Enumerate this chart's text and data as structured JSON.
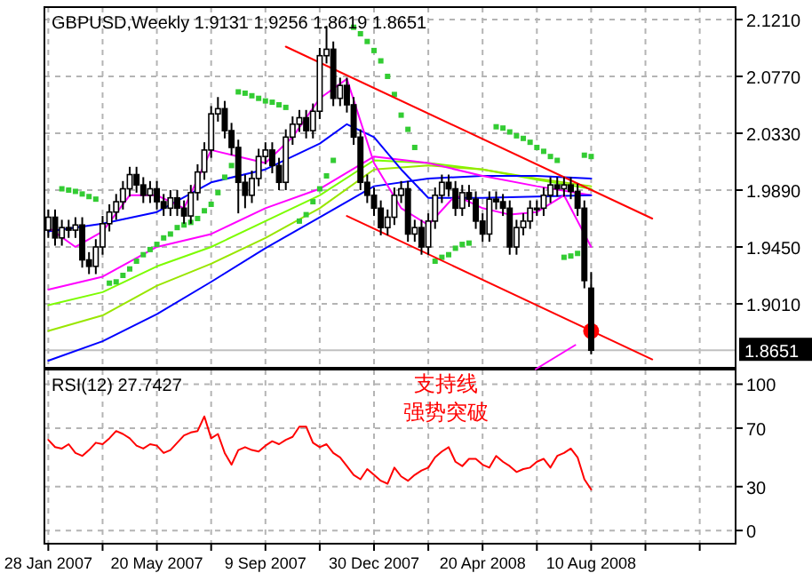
{
  "chart_data": [
    {
      "type": "candlestick",
      "title": "GBPUSD,Weekly  1.9131 1.9256 1.8619 1.8651",
      "x": [
        "2007-01-28",
        "2007-02-04",
        "2007-02-11",
        "2007-02-18",
        "2007-02-25",
        "2007-03-04",
        "2007-03-11",
        "2007-03-18",
        "2007-03-25",
        "2007-04-01",
        "2007-04-08",
        "2007-04-15",
        "2007-04-22",
        "2007-04-29",
        "2007-05-06",
        "2007-05-13",
        "2007-05-20",
        "2007-05-27",
        "2007-06-03",
        "2007-06-10",
        "2007-06-17",
        "2007-06-24",
        "2007-07-01",
        "2007-07-08",
        "2007-07-15",
        "2007-07-22",
        "2007-07-29",
        "2007-08-05",
        "2007-08-12",
        "2007-08-19",
        "2007-08-26",
        "2007-09-02",
        "2007-09-09",
        "2007-09-16",
        "2007-09-23",
        "2007-09-30",
        "2007-10-07",
        "2007-10-14",
        "2007-10-21",
        "2007-10-28",
        "2007-11-04",
        "2007-11-11",
        "2007-11-18",
        "2007-11-25",
        "2007-12-02",
        "2007-12-09",
        "2007-12-16",
        "2007-12-23",
        "2007-12-30",
        "2008-01-06",
        "2008-01-13",
        "2008-01-20",
        "2008-01-27",
        "2008-02-03",
        "2008-02-10",
        "2008-02-17",
        "2008-02-24",
        "2008-03-02",
        "2008-03-09",
        "2008-03-16",
        "2008-03-23",
        "2008-03-30",
        "2008-04-06",
        "2008-04-13",
        "2008-04-20",
        "2008-04-27",
        "2008-05-04",
        "2008-05-11",
        "2008-05-18",
        "2008-05-25",
        "2008-06-01",
        "2008-06-08",
        "2008-06-15",
        "2008-06-22",
        "2008-06-29",
        "2008-07-06",
        "2008-07-13",
        "2008-07-20",
        "2008-07-27",
        "2008-08-03",
        "2008-08-10"
      ],
      "ohlc": [
        [
          1.958,
          1.974,
          1.952,
          1.968
        ],
        [
          1.968,
          1.974,
          1.946,
          1.952
        ],
        [
          1.952,
          1.966,
          1.946,
          1.96
        ],
        [
          1.96,
          1.966,
          1.952,
          1.958
        ],
        [
          1.958,
          1.968,
          1.952,
          1.962
        ],
        [
          1.962,
          1.968,
          1.929,
          1.935
        ],
        [
          1.935,
          1.941,
          1.924,
          1.93
        ],
        [
          1.93,
          1.951,
          1.924,
          1.945
        ],
        [
          1.945,
          1.969,
          1.939,
          1.963
        ],
        [
          1.963,
          1.978,
          1.957,
          1.972
        ],
        [
          1.972,
          1.986,
          1.966,
          1.98
        ],
        [
          1.98,
          1.996,
          1.974,
          1.99
        ],
        [
          1.99,
          2.007,
          1.984,
          2.001
        ],
        [
          2.001,
          2.007,
          1.987,
          1.993
        ],
        [
          1.993,
          1.999,
          1.979,
          1.985
        ],
        [
          1.985,
          1.996,
          1.979,
          1.99
        ],
        [
          1.99,
          1.996,
          1.974,
          1.98
        ],
        [
          1.98,
          1.986,
          1.969,
          1.975
        ],
        [
          1.975,
          1.989,
          1.969,
          1.983
        ],
        [
          1.983,
          1.989,
          1.969,
          1.975
        ],
        [
          1.975,
          1.981,
          1.963,
          1.969
        ],
        [
          1.969,
          1.993,
          1.963,
          1.987
        ],
        [
          1.987,
          2.009,
          1.981,
          2.003
        ],
        [
          2.003,
          2.026,
          1.997,
          2.02
        ],
        [
          2.02,
          2.054,
          2.014,
          2.048
        ],
        [
          2.048,
          2.061,
          2.042,
          2.052
        ],
        [
          2.052,
          2.058,
          2.029,
          2.035
        ],
        [
          2.035,
          2.041,
          2.016,
          2.022
        ],
        [
          2.022,
          2.028,
          1.971,
          1.995
        ],
        [
          1.995,
          2.001,
          1.975,
          1.985
        ],
        [
          1.985,
          2.004,
          1.979,
          1.998
        ],
        [
          1.998,
          2.021,
          1.992,
          2.015
        ],
        [
          2.015,
          2.026,
          2.009,
          2.02
        ],
        [
          2.02,
          2.026,
          2.002,
          2.008
        ],
        [
          2.008,
          2.014,
          1.989,
          1.995
        ],
        [
          1.995,
          2.036,
          1.989,
          2.03
        ],
        [
          2.03,
          2.046,
          2.024,
          2.04
        ],
        [
          2.04,
          2.051,
          2.034,
          2.045
        ],
        [
          2.045,
          2.051,
          2.029,
          2.035
        ],
        [
          2.035,
          2.056,
          2.029,
          2.05
        ],
        [
          2.05,
          2.099,
          2.044,
          2.093
        ],
        [
          2.093,
          2.116,
          2.087,
          2.098
        ],
        [
          2.098,
          2.104,
          2.054,
          2.06
        ],
        [
          2.06,
          2.076,
          2.054,
          2.07
        ],
        [
          2.07,
          2.076,
          2.049,
          2.055
        ],
        [
          2.055,
          2.061,
          2.024,
          2.03
        ],
        [
          2.03,
          2.036,
          1.989,
          1.995
        ],
        [
          1.995,
          2.001,
          1.979,
          1.985
        ],
        [
          1.985,
          1.991,
          1.969,
          1.975
        ],
        [
          1.975,
          1.981,
          1.954,
          1.96
        ],
        [
          1.96,
          1.974,
          1.954,
          1.968
        ],
        [
          1.968,
          1.991,
          1.962,
          1.985
        ],
        [
          1.985,
          1.996,
          1.979,
          1.99
        ],
        [
          1.99,
          1.996,
          1.949,
          1.955
        ],
        [
          1.955,
          1.966,
          1.949,
          1.96
        ],
        [
          1.96,
          1.966,
          1.939,
          1.945
        ],
        [
          1.945,
          1.971,
          1.939,
          1.965
        ],
        [
          1.965,
          1.991,
          1.959,
          1.985
        ],
        [
          1.985,
          2.001,
          1.979,
          1.995
        ],
        [
          1.995,
          2.001,
          1.984,
          1.99
        ],
        [
          1.99,
          1.996,
          1.969,
          1.975
        ],
        [
          1.975,
          1.993,
          1.969,
          1.987
        ],
        [
          1.987,
          1.993,
          1.976,
          1.982
        ],
        [
          1.982,
          1.988,
          1.959,
          1.965
        ],
        [
          1.965,
          1.971,
          1.949,
          1.955
        ],
        [
          1.955,
          1.988,
          1.949,
          1.982
        ],
        [
          1.982,
          1.988,
          1.974,
          1.98
        ],
        [
          1.98,
          1.986,
          1.969,
          1.975
        ],
        [
          1.975,
          1.981,
          1.939,
          1.945
        ],
        [
          1.945,
          1.966,
          1.939,
          1.96
        ],
        [
          1.96,
          1.971,
          1.954,
          1.965
        ],
        [
          1.965,
          1.981,
          1.959,
          1.975
        ],
        [
          1.975,
          1.981,
          1.969,
          1.975
        ],
        [
          1.975,
          1.991,
          1.969,
          1.985
        ],
        [
          1.985,
          1.999,
          1.979,
          1.993
        ],
        [
          1.993,
          1.999,
          1.984,
          1.99
        ],
        [
          1.99,
          1.999,
          1.984,
          1.993
        ],
        [
          1.993,
          1.999,
          1.982,
          1.988
        ],
        [
          1.988,
          1.994,
          1.969,
          1.975
        ],
        [
          1.975,
          1.981,
          1.913,
          1.919
        ],
        [
          1.9131,
          1.9256,
          1.8619,
          1.8651
        ]
      ],
      "series": [
        {
          "type": "line",
          "color": "#7cfc00",
          "x": [
            "2007-01-28",
            "2007-03-25",
            "2007-05-20",
            "2007-07-15",
            "2007-09-09",
            "2007-11-04",
            "2007-12-30",
            "2008-02-24",
            "2008-04-20",
            "2008-06-15",
            "2008-08-10"
          ],
          "values": [
            1.9,
            1.91,
            1.93,
            1.945,
            1.965,
            1.985,
            2.012,
            2.01,
            2.005,
            1.997,
            1.99
          ]
        },
        {
          "type": "line",
          "color": "#99e600",
          "x": [
            "2007-01-28",
            "2007-03-25",
            "2007-05-20",
            "2007-07-15",
            "2007-09-09",
            "2007-11-04",
            "2007-12-30",
            "2008-02-24",
            "2008-04-20",
            "2008-06-15",
            "2008-08-10"
          ],
          "values": [
            1.88,
            1.892,
            1.915,
            1.932,
            1.952,
            1.975,
            2.005,
            2.008,
            2.005,
            1.998,
            1.992
          ]
        },
        {
          "type": "line",
          "color": "#0000ff",
          "x": [
            "2007-01-28",
            "2007-03-25",
            "2007-05-20",
            "2007-07-15",
            "2007-09-09",
            "2007-11-04",
            "2007-12-30",
            "2008-02-24",
            "2008-04-20",
            "2008-06-15",
            "2008-08-10"
          ],
          "values": [
            1.857,
            1.872,
            1.893,
            1.918,
            1.944,
            1.968,
            1.992,
            1.998,
            2.0,
            2.0,
            1.998
          ]
        },
        {
          "type": "line",
          "color": "#ff00ff",
          "x": [
            "2007-01-28",
            "2007-03-25",
            "2007-05-20",
            "2007-07-15",
            "2007-09-09",
            "2007-11-04",
            "2007-12-30",
            "2008-02-24",
            "2008-04-20",
            "2008-06-15",
            "2008-08-10"
          ],
          "values": [
            1.912,
            1.922,
            1.945,
            1.955,
            1.975,
            1.99,
            2.015,
            2.01,
            2.0,
            1.992,
            1.985
          ]
        },
        {
          "type": "line",
          "color": "#0000ff",
          "x": [
            "2007-01-28",
            "2007-03-25",
            "2007-05-20",
            "2007-07-15",
            "2007-09-09",
            "2007-11-04",
            "2007-12-02",
            "2007-12-30",
            "2008-01-27",
            "2008-02-24",
            "2008-04-20",
            "2008-06-15",
            "2008-08-10"
          ],
          "values": [
            1.957,
            1.963,
            1.972,
            1.995,
            2.005,
            2.025,
            2.04,
            2.03,
            2.005,
            1.983,
            1.983,
            1.984,
            1.985
          ]
        },
        {
          "type": "line",
          "color": "#ff00ff",
          "x": [
            "2007-01-28",
            "2007-02-25",
            "2007-03-25",
            "2007-04-22",
            "2007-05-20",
            "2007-06-17",
            "2007-07-15",
            "2007-08-12",
            "2007-09-09",
            "2007-10-07",
            "2007-11-04",
            "2007-12-02",
            "2007-12-30",
            "2008-01-27",
            "2008-02-24",
            "2008-03-23",
            "2008-04-20",
            "2008-05-18",
            "2008-06-15",
            "2008-07-13",
            "2008-08-10"
          ],
          "values": [
            1.96,
            1.945,
            1.957,
            1.985,
            1.985,
            1.975,
            2.02,
            2.015,
            2.01,
            2.03,
            2.06,
            2.075,
            2.01,
            1.975,
            1.962,
            1.985,
            1.975,
            1.97,
            1.972,
            1.985,
            1.945
          ]
        },
        {
          "type": "scatter",
          "marker": "square",
          "color": "#33cc33",
          "x": [
            "2007-02-11",
            "2007-02-18",
            "2007-02-25",
            "2007-03-04",
            "2007-03-11",
            "2007-03-18",
            "2007-04-01",
            "2007-04-08",
            "2007-04-15",
            "2007-04-22",
            "2007-04-29",
            "2007-05-06",
            "2007-05-13",
            "2007-05-20",
            "2007-05-27",
            "2007-06-03",
            "2007-06-10",
            "2007-06-17",
            "2007-06-24",
            "2007-07-01",
            "2007-07-08",
            "2007-07-15",
            "2007-07-22",
            "2007-07-29",
            "2007-08-05",
            "2007-08-12",
            "2007-08-19",
            "2007-08-26",
            "2007-09-02",
            "2007-09-09",
            "2007-09-16",
            "2007-09-23",
            "2007-09-30",
            "2007-10-14",
            "2007-10-21",
            "2007-10-28",
            "2007-11-04",
            "2007-11-11",
            "2007-11-18",
            "2007-12-09",
            "2007-12-16",
            "2007-12-23",
            "2007-12-30",
            "2008-01-06",
            "2008-01-13",
            "2008-01-20",
            "2008-01-27",
            "2008-02-03",
            "2008-02-10",
            "2008-03-02",
            "2008-03-09",
            "2008-03-16",
            "2008-03-23",
            "2008-03-30",
            "2008-04-06",
            "2008-05-04",
            "2008-05-11",
            "2008-05-18",
            "2008-05-25",
            "2008-06-01",
            "2008-06-08",
            "2008-06-15",
            "2008-06-22",
            "2008-06-29",
            "2008-07-06",
            "2008-07-13",
            "2008-07-20",
            "2008-07-27",
            "2008-08-03",
            "2008-08-10"
          ],
          "values": [
            1.99,
            1.989,
            1.988,
            1.986,
            1.984,
            1.982,
            1.917,
            1.918,
            1.923,
            1.928,
            1.934,
            1.939,
            1.943,
            1.947,
            1.952,
            1.955,
            1.96,
            1.962,
            1.964,
            1.967,
            1.973,
            1.978,
            1.987,
            1.999,
            2.008,
            2.065,
            2.064,
            2.062,
            2.06,
            2.058,
            2.057,
            2.055,
            2.053,
            1.965,
            1.97,
            1.98,
            1.99,
            2.0,
            2.012,
            2.115,
            2.11,
            2.104,
            2.097,
            2.089,
            2.077,
            2.063,
            2.047,
            2.036,
            2.022,
            1.934,
            1.937,
            1.939,
            1.944,
            1.947,
            1.948,
            2.038,
            2.037,
            2.034,
            2.031,
            2.029,
            2.026,
            2.022,
            2.019,
            2.015,
            2.012,
            1.937,
            1.938,
            1.94,
            2.016,
            2.015
          ]
        },
        {
          "type": "line",
          "color": "#ff0000",
          "x": [
            "2007-09-30",
            "2008-10-12"
          ],
          "values": [
            2.1,
            1.967
          ]
        },
        {
          "type": "line",
          "color": "#ff0000",
          "x": [
            "2007-12-02",
            "2008-10-12"
          ],
          "values": [
            1.969,
            1.858
          ]
        },
        {
          "type": "scatter",
          "marker": "circle",
          "color": "#ff0000",
          "x": [
            "2008-08-10"
          ],
          "values": [
            1.88
          ]
        }
      ],
      "ref_lines": [
        {
          "axis": "y",
          "value": 1.8651,
          "label": "1.8651",
          "color": "#c0c0c0"
        }
      ],
      "xlim": [
        "2007-01-24",
        "2009-01-06"
      ],
      "xticks": [
        {
          "value": "2007-01-28",
          "label": null
        },
        {
          "value": "2007-03-25",
          "label": null
        },
        {
          "value": "2007-05-20",
          "label": null
        },
        {
          "value": "2007-07-15",
          "label": null
        },
        {
          "value": "2007-09-09",
          "label": null
        },
        {
          "value": "2007-11-04",
          "label": null
        },
        {
          "value": "2007-12-30",
          "label": null
        },
        {
          "value": "2008-02-24",
          "label": null
        },
        {
          "value": "2008-04-20",
          "label": null
        },
        {
          "value": "2008-06-15",
          "label": null
        },
        {
          "value": "2008-08-10",
          "label": null
        },
        {
          "value": "2008-10-05",
          "label": null
        },
        {
          "value": "2008-11-30",
          "label": null
        }
      ],
      "ylim": [
        1.8515,
        2.1306
      ],
      "yticks": [
        {
          "value": 2.121,
          "label": "2.1210"
        },
        {
          "value": 2.077,
          "label": "2.0770"
        },
        {
          "value": 2.033,
          "label": "2.0330"
        },
        {
          "value": 1.989,
          "label": "1.9890"
        },
        {
          "value": 1.945,
          "label": "1.9450"
        },
        {
          "value": 1.901,
          "label": "1.9010"
        }
      ],
      "tick_labels": "y",
      "grid": true
    },
    {
      "type": "line",
      "title": "RSI(12) 27.7427",
      "x": [
        "2007-01-28",
        "2007-02-04",
        "2007-02-11",
        "2007-02-18",
        "2007-02-25",
        "2007-03-04",
        "2007-03-11",
        "2007-03-18",
        "2007-03-25",
        "2007-04-01",
        "2007-04-08",
        "2007-04-15",
        "2007-04-22",
        "2007-04-29",
        "2007-05-06",
        "2007-05-13",
        "2007-05-20",
        "2007-05-27",
        "2007-06-03",
        "2007-06-10",
        "2007-06-17",
        "2007-06-24",
        "2007-07-01",
        "2007-07-08",
        "2007-07-15",
        "2007-07-22",
        "2007-07-29",
        "2007-08-05",
        "2007-08-12",
        "2007-08-19",
        "2007-08-26",
        "2007-09-02",
        "2007-09-09",
        "2007-09-16",
        "2007-09-23",
        "2007-09-30",
        "2007-10-07",
        "2007-10-14",
        "2007-10-21",
        "2007-10-28",
        "2007-11-04",
        "2007-11-11",
        "2007-11-18",
        "2007-11-25",
        "2007-12-02",
        "2007-12-09",
        "2007-12-16",
        "2007-12-23",
        "2007-12-30",
        "2008-01-06",
        "2008-01-13",
        "2008-01-20",
        "2008-01-27",
        "2008-02-03",
        "2008-02-10",
        "2008-02-17",
        "2008-02-24",
        "2008-03-02",
        "2008-03-09",
        "2008-03-16",
        "2008-03-23",
        "2008-03-30",
        "2008-04-06",
        "2008-04-13",
        "2008-04-20",
        "2008-04-27",
        "2008-05-04",
        "2008-05-11",
        "2008-05-18",
        "2008-05-25",
        "2008-06-01",
        "2008-06-08",
        "2008-06-15",
        "2008-06-22",
        "2008-06-29",
        "2008-07-06",
        "2008-07-13",
        "2008-07-20",
        "2008-07-27",
        "2008-08-03",
        "2008-08-10"
      ],
      "series": [
        {
          "color": "#ff0000",
          "values": [
            62,
            57,
            56,
            59,
            53,
            51,
            55,
            60,
            59,
            63,
            68,
            66,
            63,
            58,
            56,
            59,
            58,
            53,
            55,
            60,
            65,
            67,
            68,
            78,
            63,
            66,
            53,
            45,
            55,
            57,
            55,
            54,
            58,
            61,
            59,
            62,
            64,
            71,
            71,
            60,
            57,
            59,
            53,
            50,
            44,
            38,
            35,
            42,
            38,
            34,
            32,
            43,
            37,
            34,
            38,
            41,
            43,
            50,
            54,
            57,
            47,
            44,
            49,
            49,
            45,
            43,
            51,
            47,
            44,
            40,
            42,
            43,
            47,
            49,
            43,
            51,
            53,
            56,
            50,
            35,
            28
          ]
        }
      ],
      "xlim": [
        "2007-01-24",
        "2009-01-06"
      ],
      "xticks": [
        {
          "value": "2007-01-28",
          "label": "28 Jan 2007"
        },
        {
          "value": "2007-03-25",
          "label": null
        },
        {
          "value": "2007-05-20",
          "label": "20 May 2007"
        },
        {
          "value": "2007-07-15",
          "label": null
        },
        {
          "value": "2007-09-09",
          "label": "9 Sep 2007"
        },
        {
          "value": "2007-11-04",
          "label": null
        },
        {
          "value": "2007-12-30",
          "label": "30 Dec 2007"
        },
        {
          "value": "2008-02-24",
          "label": null
        },
        {
          "value": "2008-04-20",
          "label": "20 Apr 2008"
        },
        {
          "value": "2008-06-15",
          "label": null
        },
        {
          "value": "2008-08-10",
          "label": "10 Aug 2008"
        },
        {
          "value": "2008-10-05",
          "label": null
        },
        {
          "value": "2008-11-30",
          "label": null
        }
      ],
      "ylim": [
        -9,
        110
      ],
      "yticks": [
        100,
        70,
        30,
        0
      ],
      "grid": true,
      "annotations": [
        "支持线",
        "强势突破"
      ]
    }
  ]
}
